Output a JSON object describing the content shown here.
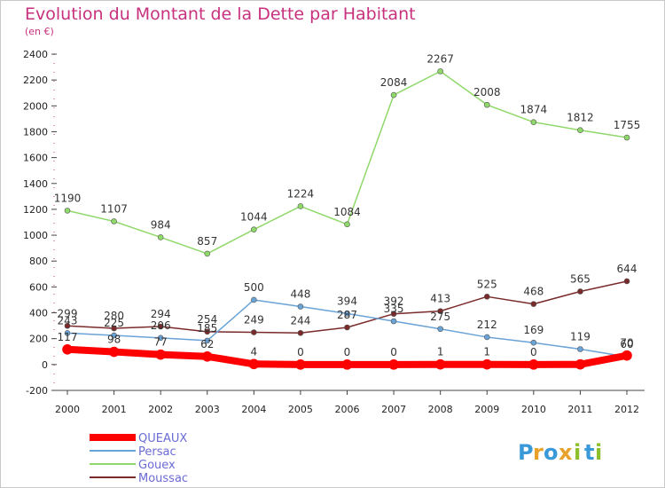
{
  "header": {
    "title": "Evolution du Montant de la Dette par Habitant",
    "unit": "(en €)"
  },
  "brand": {
    "logo_text": "Proxiti",
    "letters": [
      {
        "ch": "P",
        "color": "#3a9ad9"
      },
      {
        "ch": "r",
        "color": "#e8a12a"
      },
      {
        "ch": "o",
        "color": "#3a9ad9"
      },
      {
        "ch": "x",
        "color": "#e8a12a"
      },
      {
        "ch": "i",
        "color": "#8bbf2b"
      },
      {
        "ch": "t",
        "color": "#3a9ad9"
      },
      {
        "ch": "i",
        "color": "#8bbf2b"
      }
    ]
  },
  "chart_data": {
    "type": "line",
    "title": "Evolution du Montant de la Dette par Habitant",
    "ylabel": "(en €)",
    "xlabel": "",
    "x": [
      "2000",
      "2001",
      "2002",
      "2003",
      "2004",
      "2005",
      "2006",
      "2007",
      "2008",
      "2009",
      "2010",
      "2011",
      "2012"
    ],
    "ylim": [
      -200,
      2400
    ],
    "yticks": [
      -200,
      0,
      200,
      400,
      600,
      800,
      1000,
      1200,
      1400,
      1600,
      1800,
      2000,
      2200,
      2400
    ],
    "grid": false,
    "legend_position": "bottom-left",
    "series": [
      {
        "name": "Moussac",
        "color": "#7a2a2a",
        "values": [
          299,
          280,
          294,
          254,
          249,
          244,
          287,
          392,
          413,
          525,
          468,
          565,
          644
        ],
        "labels": [
          "299",
          "280",
          "294",
          "254",
          "249",
          "244",
          "287",
          "392",
          "413",
          "525",
          "468",
          "565",
          "644"
        ]
      },
      {
        "name": "Gouex",
        "color": "#8fd86a",
        "values": [
          1190,
          1107,
          984,
          857,
          1044,
          1224,
          1084,
          2084,
          2267,
          2008,
          1874,
          1812,
          1755
        ],
        "labels": [
          "1190",
          "1107",
          "984",
          "857",
          "1044",
          "1224",
          "1084",
          "2084",
          "2267",
          "2008",
          "1874",
          "1812",
          "1755"
        ]
      },
      {
        "name": "Persac",
        "color": "#6aa3d6",
        "values": [
          243,
          225,
          206,
          185,
          500,
          448,
          394,
          335,
          275,
          212,
          169,
          119,
          60
        ],
        "labels": [
          "243",
          "225",
          "206",
          "185",
          "500",
          "448",
          "394",
          "335",
          "275",
          "212",
          "169",
          "119",
          "60"
        ]
      },
      {
        "name": "QUEAUX",
        "color": "#ff0000",
        "values": [
          117,
          98,
          77,
          62,
          4,
          0,
          0,
          0,
          1,
          1,
          0,
          1,
          70
        ],
        "labels": [
          "117",
          "98",
          "77",
          "62",
          "4",
          "0",
          "0",
          "0",
          "1",
          "1",
          "0",
          "",
          "70"
        ]
      }
    ],
    "legend_order": [
      "QUEAUX",
      "Persac",
      "Gouex",
      "Moussac"
    ]
  }
}
